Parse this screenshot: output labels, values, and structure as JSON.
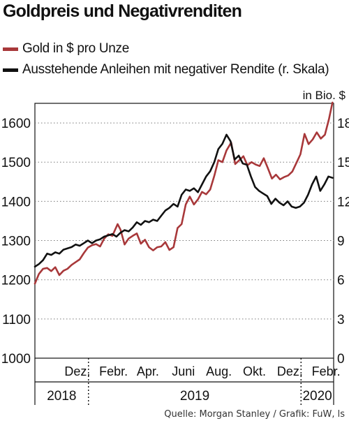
{
  "title": "Goldpreis und Negativrenditen",
  "source": "Quelle: Morgan Stanley / Grafik: FuW, ls",
  "colors": {
    "gold": "#a8383a",
    "bonds": "#111111",
    "grid": "#7a7a7a"
  },
  "legend": [
    {
      "label": "Gold in $ pro Unze",
      "color": "#a8383a"
    },
    {
      "label": "Ausstehende Anleihen mit negativer Rendite (r. Skala)",
      "color": "#111111"
    }
  ],
  "chart_data": {
    "type": "line",
    "y_left": {
      "min": 1000,
      "max": 1650,
      "ticks": [
        1000,
        1100,
        1200,
        1300,
        1400,
        1500,
        1600
      ]
    },
    "y_right": {
      "label": "in Bio. $",
      "min": 0,
      "max": 19.5,
      "ticks": [
        0,
        3,
        6,
        9,
        12,
        15,
        18
      ]
    },
    "x_range": [
      "2018-10-01",
      "2020-02-26"
    ],
    "x_month_labels": [
      {
        "date": "2018-12-01",
        "label": "Dez."
      },
      {
        "date": "2019-02-01",
        "label": "Febr."
      },
      {
        "date": "2019-04-01",
        "label": "Apr."
      },
      {
        "date": "2019-06-01",
        "label": "Juni"
      },
      {
        "date": "2019-08-01",
        "label": "Aug."
      },
      {
        "date": "2019-10-01",
        "label": "Okt."
      },
      {
        "date": "2019-12-01",
        "label": "Dez."
      },
      {
        "date": "2020-02-01",
        "label": "Febr."
      }
    ],
    "x_year_labels": [
      {
        "label": "2018",
        "start": "2018-10-01",
        "end": "2019-01-01"
      },
      {
        "label": "2019",
        "start": "2019-01-01",
        "end": "2020-01-01"
      },
      {
        "label": "2020",
        "start": "2020-01-01",
        "end": "2020-02-26"
      }
    ],
    "year_dividers": [
      "2019-01-01",
      "2020-01-01"
    ],
    "grid": "dotted-horizontal",
    "series": [
      {
        "name": "Gold in $ pro Unze",
        "axis": "left",
        "points": [
          [
            "2018-10-01",
            1190
          ],
          [
            "2018-10-08",
            1215
          ],
          [
            "2018-10-15",
            1228
          ],
          [
            "2018-10-22",
            1230
          ],
          [
            "2018-10-29",
            1222
          ],
          [
            "2018-11-05",
            1232
          ],
          [
            "2018-11-12",
            1212
          ],
          [
            "2018-11-19",
            1223
          ],
          [
            "2018-11-26",
            1228
          ],
          [
            "2018-12-03",
            1238
          ],
          [
            "2018-12-10",
            1245
          ],
          [
            "2018-12-17",
            1252
          ],
          [
            "2018-12-24",
            1268
          ],
          [
            "2018-12-31",
            1282
          ],
          [
            "2019-01-07",
            1288
          ],
          [
            "2019-01-14",
            1291
          ],
          [
            "2019-01-21",
            1285
          ],
          [
            "2019-01-28",
            1305
          ],
          [
            "2019-02-04",
            1316
          ],
          [
            "2019-02-11",
            1312
          ],
          [
            "2019-02-20",
            1342
          ],
          [
            "2019-02-25",
            1328
          ],
          [
            "2019-03-04",
            1290
          ],
          [
            "2019-03-11",
            1305
          ],
          [
            "2019-03-18",
            1312
          ],
          [
            "2019-03-25",
            1318
          ],
          [
            "2019-04-01",
            1292
          ],
          [
            "2019-04-08",
            1302
          ],
          [
            "2019-04-15",
            1283
          ],
          [
            "2019-04-22",
            1275
          ],
          [
            "2019-04-29",
            1283
          ],
          [
            "2019-05-06",
            1285
          ],
          [
            "2019-05-13",
            1296
          ],
          [
            "2019-05-20",
            1276
          ],
          [
            "2019-05-27",
            1283
          ],
          [
            "2019-06-03",
            1332
          ],
          [
            "2019-06-10",
            1342
          ],
          [
            "2019-06-17",
            1392
          ],
          [
            "2019-06-24",
            1412
          ],
          [
            "2019-07-01",
            1392
          ],
          [
            "2019-07-08",
            1405
          ],
          [
            "2019-07-15",
            1424
          ],
          [
            "2019-07-22",
            1418
          ],
          [
            "2019-07-29",
            1430
          ],
          [
            "2019-08-05",
            1465
          ],
          [
            "2019-08-12",
            1505
          ],
          [
            "2019-08-19",
            1500
          ],
          [
            "2019-08-26",
            1530
          ],
          [
            "2019-09-03",
            1550
          ],
          [
            "2019-09-10",
            1495
          ],
          [
            "2019-09-17",
            1505
          ],
          [
            "2019-09-24",
            1515
          ],
          [
            "2019-10-01",
            1492
          ],
          [
            "2019-10-08",
            1500
          ],
          [
            "2019-10-15",
            1494
          ],
          [
            "2019-10-22",
            1490
          ],
          [
            "2019-10-29",
            1510
          ],
          [
            "2019-11-05",
            1485
          ],
          [
            "2019-11-12",
            1458
          ],
          [
            "2019-11-19",
            1468
          ],
          [
            "2019-11-26",
            1456
          ],
          [
            "2019-12-03",
            1462
          ],
          [
            "2019-12-10",
            1466
          ],
          [
            "2019-12-17",
            1476
          ],
          [
            "2019-12-24",
            1498
          ],
          [
            "2019-12-31",
            1520
          ],
          [
            "2020-01-07",
            1572
          ],
          [
            "2020-01-14",
            1546
          ],
          [
            "2020-01-21",
            1558
          ],
          [
            "2020-01-28",
            1576
          ],
          [
            "2020-02-04",
            1560
          ],
          [
            "2020-02-11",
            1570
          ],
          [
            "2020-02-18",
            1610
          ],
          [
            "2020-02-24",
            1652
          ]
        ]
      },
      {
        "name": "Ausstehende Anleihen mit negativer Rendite (r. Skala)",
        "axis": "right",
        "points": [
          [
            "2018-10-01",
            7.0
          ],
          [
            "2018-10-08",
            7.2
          ],
          [
            "2018-10-15",
            7.5
          ],
          [
            "2018-10-22",
            8.0
          ],
          [
            "2018-10-29",
            7.9
          ],
          [
            "2018-11-05",
            8.1
          ],
          [
            "2018-11-12",
            8.0
          ],
          [
            "2018-11-19",
            8.3
          ],
          [
            "2018-11-26",
            8.4
          ],
          [
            "2018-12-03",
            8.5
          ],
          [
            "2018-12-10",
            8.7
          ],
          [
            "2018-12-17",
            8.6
          ],
          [
            "2018-12-24",
            8.8
          ],
          [
            "2018-12-31",
            9.0
          ],
          [
            "2019-01-07",
            8.8
          ],
          [
            "2019-01-14",
            9.0
          ],
          [
            "2019-01-21",
            9.1
          ],
          [
            "2019-01-28",
            9.3
          ],
          [
            "2019-02-04",
            9.4
          ],
          [
            "2019-02-11",
            9.5
          ],
          [
            "2019-02-18",
            9.3
          ],
          [
            "2019-02-25",
            9.6
          ],
          [
            "2019-03-04",
            9.8
          ],
          [
            "2019-03-11",
            9.7
          ],
          [
            "2019-03-18",
            10.0
          ],
          [
            "2019-03-25",
            10.4
          ],
          [
            "2019-04-01",
            10.2
          ],
          [
            "2019-04-08",
            10.5
          ],
          [
            "2019-04-15",
            10.4
          ],
          [
            "2019-04-22",
            10.6
          ],
          [
            "2019-04-29",
            10.5
          ],
          [
            "2019-05-06",
            10.9
          ],
          [
            "2019-05-13",
            11.3
          ],
          [
            "2019-05-20",
            11.5
          ],
          [
            "2019-05-27",
            11.8
          ],
          [
            "2019-06-03",
            11.6
          ],
          [
            "2019-06-10",
            12.5
          ],
          [
            "2019-06-17",
            12.9
          ],
          [
            "2019-06-24",
            12.8
          ],
          [
            "2019-07-01",
            13.0
          ],
          [
            "2019-07-08",
            12.7
          ],
          [
            "2019-07-15",
            13.3
          ],
          [
            "2019-07-22",
            13.9
          ],
          [
            "2019-07-29",
            14.3
          ],
          [
            "2019-08-05",
            15.0
          ],
          [
            "2019-08-12",
            16.0
          ],
          [
            "2019-08-19",
            16.4
          ],
          [
            "2019-08-26",
            17.1
          ],
          [
            "2019-09-02",
            16.6
          ],
          [
            "2019-09-09",
            15.2
          ],
          [
            "2019-09-16",
            15.5
          ],
          [
            "2019-09-23",
            14.9
          ],
          [
            "2019-09-30",
            14.8
          ],
          [
            "2019-10-07",
            13.9
          ],
          [
            "2019-10-14",
            13.1
          ],
          [
            "2019-10-21",
            12.8
          ],
          [
            "2019-10-28",
            12.6
          ],
          [
            "2019-11-04",
            12.4
          ],
          [
            "2019-11-11",
            11.8
          ],
          [
            "2019-11-18",
            12.2
          ],
          [
            "2019-11-25",
            11.9
          ],
          [
            "2019-12-02",
            11.7
          ],
          [
            "2019-12-09",
            12.0
          ],
          [
            "2019-12-16",
            11.6
          ],
          [
            "2019-12-23",
            11.5
          ],
          [
            "2019-12-30",
            11.6
          ],
          [
            "2020-01-06",
            11.9
          ],
          [
            "2020-01-13",
            12.5
          ],
          [
            "2020-01-20",
            13.3
          ],
          [
            "2020-01-27",
            13.9
          ],
          [
            "2020-02-03",
            12.8
          ],
          [
            "2020-02-10",
            13.3
          ],
          [
            "2020-02-17",
            13.9
          ],
          [
            "2020-02-24",
            13.8
          ]
        ]
      }
    ]
  }
}
